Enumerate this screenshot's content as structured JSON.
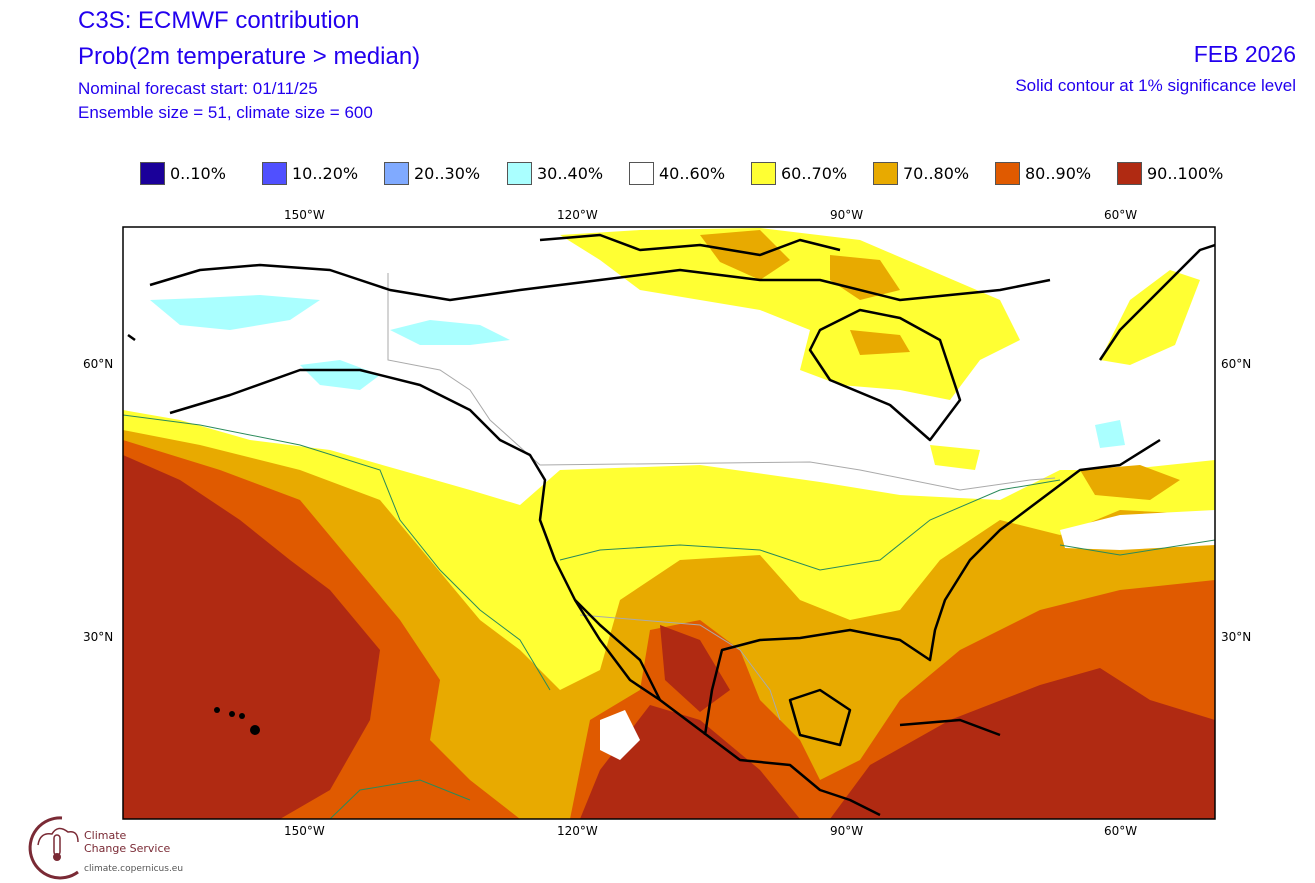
{
  "header": {
    "title": "C3S: ECMWF contribution",
    "subtitle": "Prob(2m temperature > median)",
    "forecast_start": "Nominal forecast start: 01/11/25",
    "ensemble_info": "Ensemble size = 51, climate size = 600",
    "period": "FEB 2026",
    "significance_note": "Solid contour at 1% significance level"
  },
  "legend": [
    {
      "label": "0..10%",
      "color": "#1a0099"
    },
    {
      "label": "10..20%",
      "color": "#5050ff"
    },
    {
      "label": "20..30%",
      "color": "#80aaff"
    },
    {
      "label": "30..40%",
      "color": "#aaffff"
    },
    {
      "label": "40..60%",
      "color": "#ffffff"
    },
    {
      "label": "60..70%",
      "color": "#ffff33"
    },
    {
      "label": "70..80%",
      "color": "#e8aa00"
    },
    {
      "label": "80..90%",
      "color": "#e05a00"
    },
    {
      "label": "90..100%",
      "color": "#b02a12"
    }
  ],
  "map": {
    "extent": {
      "lon": [
        "170W",
        "50W"
      ],
      "lat": [
        "10N",
        "75N"
      ]
    },
    "lon_labels": [
      "150°W",
      "120°W",
      "90°W",
      "60°W"
    ],
    "lat_labels": [
      "60°N",
      "30°N"
    ]
  },
  "logo": {
    "line1": "Climate",
    "line2": "Change Service",
    "url": "climate.copernicus.eu"
  }
}
